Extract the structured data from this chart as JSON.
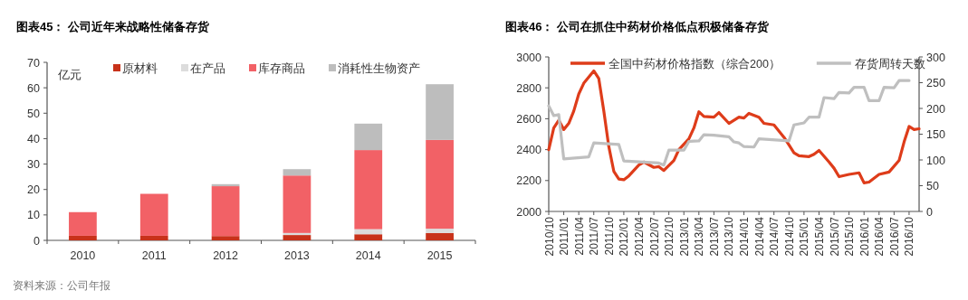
{
  "chart_data": [
    {
      "type": "bar",
      "title": "图表45：  公司近年来战略性储备存货",
      "ylabel": "亿元",
      "stacked": true,
      "legend": "top",
      "categories": [
        "2010",
        "2011",
        "2012",
        "2013",
        "2014",
        "2015"
      ],
      "ylim": [
        0,
        70
      ],
      "yticks": [
        0,
        10,
        20,
        30,
        40,
        50,
        60,
        70
      ],
      "series": [
        {
          "name": "原材料",
          "color": "#c8321a",
          "values": [
            1.8,
            1.8,
            1.7,
            2.1,
            2.4,
            2.9
          ]
        },
        {
          "name": "在产品",
          "color": "#dcdcdc",
          "values": [
            null,
            null,
            null,
            0.8,
            2.0,
            1.7
          ]
        },
        {
          "name": "库存商品",
          "color": "#f26166",
          "values": [
            9.3,
            16.5,
            19.6,
            22.6,
            31.1,
            34.9
          ]
        },
        {
          "name": "消耗性生物资产",
          "color": "#bdbdbd",
          "values": [
            0,
            null,
            0.8,
            2.5,
            10.4,
            21.9
          ]
        }
      ],
      "annotations": [
        "资料来源：公司年报"
      ]
    },
    {
      "type": "line",
      "title": "图表46：  公司在抓住中药材价格低点积极储备存货",
      "legend": "top",
      "marker": "none",
      "line_style": "solid",
      "xlim": [
        "2010-10",
        "2016-12"
      ],
      "xticks": [
        {
          "value": "2010-10",
          "label": "2010/10"
        },
        {
          "value": "2011-01",
          "label": "2011/01"
        },
        {
          "value": "2011-04",
          "label": "2011/04"
        },
        {
          "value": "2011-07",
          "label": "2011/07"
        },
        {
          "value": "2011-10",
          "label": "2011/10"
        },
        {
          "value": "2012-01",
          "label": "2012/01"
        },
        {
          "value": "2012-04",
          "label": "2012/04"
        },
        {
          "value": "2012-07",
          "label": "2012/07"
        },
        {
          "value": "2012-10",
          "label": "2012/10"
        },
        {
          "value": "2013-01",
          "label": "2013/01"
        },
        {
          "value": "2013-04",
          "label": "2013/04"
        },
        {
          "value": "2013-07",
          "label": "2013/07"
        },
        {
          "value": "2013-10",
          "label": "2013/10"
        },
        {
          "value": "2014-01",
          "label": "2014/01"
        },
        {
          "value": "2014-04",
          "label": "2014/04"
        },
        {
          "value": "2014-07",
          "label": "2014/07"
        },
        {
          "value": "2014-10",
          "label": "2014/10"
        },
        {
          "value": "2015-01",
          "label": "2015/01"
        },
        {
          "value": "2015-04",
          "label": "2015/04"
        },
        {
          "value": "2015-07",
          "label": "2015/07"
        },
        {
          "value": "2015-10",
          "label": "2015/10"
        },
        {
          "value": "2016-01",
          "label": "2016/01"
        },
        {
          "value": "2016-04",
          "label": "2016/04"
        },
        {
          "value": "2016-07",
          "label": "2016/07"
        },
        {
          "value": "2016-10",
          "label": "2016/10"
        }
      ],
      "ylim": [
        2000,
        3000
      ],
      "yticks": [
        2000,
        2200,
        2400,
        2600,
        2800,
        3000
      ],
      "y2lim": [
        0,
        300
      ],
      "y2ticks": [
        0,
        50,
        100,
        150,
        200,
        250,
        300
      ],
      "series": [
        {
          "name": "全国中药材价格指数（综合200）",
          "color": "#de3c1a",
          "x": [
            "2010-10",
            "2010-11",
            "2010-12",
            "2011-01",
            "2011-02",
            "2011-03",
            "2011-04",
            "2011-05",
            "2011-06",
            "2011-07",
            "2011-08",
            "2011-09",
            "2011-10",
            "2011-11",
            "2011-12",
            "2012-01",
            "2012-02",
            "2012-04",
            "2012-05",
            "2012-07",
            "2012-08",
            "2012-09",
            "2012-11",
            "2012-12",
            "2013-02",
            "2013-03",
            "2013-04",
            "2013-05",
            "2013-07",
            "2013-08",
            "2013-10",
            "2013-12",
            "2014-01",
            "2014-02",
            "2014-04",
            "2014-05",
            "2014-07",
            "2014-09",
            "2014-10",
            "2014-11",
            "2014-12",
            "2015-02",
            "2015-03",
            "2015-04",
            "2015-06",
            "2015-07",
            "2015-08",
            "2015-10",
            "2015-12",
            "2016-01",
            "2016-02",
            "2016-04",
            "2016-06",
            "2016-08",
            "2016-09",
            "2016-10",
            "2016-11",
            "2016-12"
          ],
          "values": [
            2400,
            2540,
            2590,
            2530,
            2570,
            2650,
            2760,
            2830,
            2870,
            2910,
            2860,
            2650,
            2420,
            2260,
            2210,
            2205,
            2230,
            2300,
            2320,
            2285,
            2290,
            2265,
            2330,
            2400,
            2470,
            2540,
            2645,
            2615,
            2610,
            2640,
            2570,
            2610,
            2605,
            2635,
            2610,
            2570,
            2560,
            2480,
            2430,
            2380,
            2360,
            2355,
            2370,
            2395,
            2320,
            2280,
            2225,
            2240,
            2250,
            2185,
            2190,
            2240,
            2255,
            2330,
            2450,
            2550,
            2530,
            2535
          ]
        },
        {
          "name": "存货周转天数",
          "color": "#bfbfbf",
          "axis": "y2",
          "x": [
            "2010-10",
            "2010-11",
            "2010-12",
            "2011-01",
            "2011-06",
            "2011-07",
            "2011-12",
            "2012-01",
            "2012-08",
            "2012-09",
            "2012-10",
            "2013-01",
            "2013-02",
            "2013-04",
            "2013-05",
            "2013-07",
            "2013-10",
            "2013-11",
            "2013-12",
            "2014-01",
            "2014-03",
            "2014-04",
            "2014-10",
            "2014-11",
            "2015-01",
            "2015-02",
            "2015-04",
            "2015-05",
            "2015-07",
            "2015-08",
            "2015-10",
            "2015-11",
            "2016-01",
            "2016-02",
            "2016-04",
            "2016-05",
            "2016-07",
            "2016-08",
            "2016-10"
          ],
          "values": [
            205,
            186,
            188,
            102,
            106,
            133,
            130,
            98,
            94,
            90,
            119,
            119,
            136,
            137,
            149,
            148,
            145,
            135,
            133,
            126,
            125,
            141,
            137,
            168,
            172,
            183,
            183,
            221,
            219,
            231,
            230,
            241,
            241,
            215,
            215,
            241,
            240,
            254,
            254
          ]
        }
      ]
    }
  ]
}
